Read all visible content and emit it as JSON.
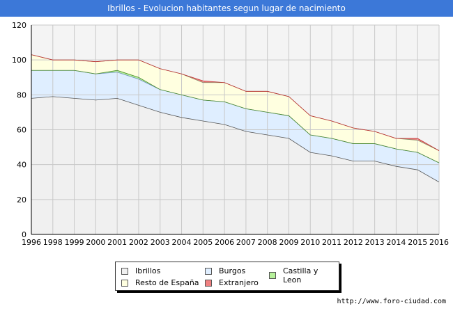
{
  "title": "Ibrillos - Evolucion habitantes segun lugar de nacimiento",
  "footer": "http://www.foro-ciudad.com",
  "colors": {
    "header_bg": "#3c78d8",
    "plot_bg": "#f4f4f4"
  },
  "chart_data": {
    "type": "area",
    "stacked": true,
    "x": [
      1996,
      1998,
      1999,
      2000,
      2001,
      2002,
      2003,
      2004,
      2005,
      2006,
      2007,
      2008,
      2009,
      2010,
      2011,
      2012,
      2013,
      2014,
      2015,
      2016
    ],
    "ylim": [
      0,
      120
    ],
    "yticks": [
      0,
      20,
      40,
      60,
      80,
      100,
      120
    ],
    "grid": true,
    "legend_position": "bottom",
    "series": [
      {
        "name": "Ibrillos",
        "color": "#f0f0f0",
        "values": [
          78,
          79,
          78,
          77,
          78,
          74,
          70,
          67,
          65,
          63,
          59,
          57,
          55,
          47,
          45,
          42,
          42,
          39,
          37,
          30
        ]
      },
      {
        "name": "Burgos",
        "color": "#dfeeff",
        "values": [
          16,
          15,
          16,
          15,
          15,
          15,
          13,
          13,
          12,
          13,
          13,
          13,
          13,
          10,
          10,
          10,
          10,
          10,
          10,
          11
        ]
      },
      {
        "name": "Castilla y Leon",
        "color": "#b6f09a",
        "values": [
          0,
          0,
          0,
          0,
          1,
          1,
          0,
          0,
          0,
          0,
          0,
          0,
          0,
          0,
          0,
          0,
          0,
          0,
          0,
          0
        ]
      },
      {
        "name": "Resto de España",
        "color": "#ffffe0",
        "values": [
          9,
          6,
          6,
          7,
          6,
          10,
          12,
          12,
          10,
          11,
          10,
          12,
          11,
          11,
          10,
          9,
          7,
          6,
          7,
          7
        ]
      },
      {
        "name": "Extranjero",
        "color": "#f08080",
        "values": [
          0,
          0,
          0,
          0,
          0,
          0,
          0,
          0,
          1,
          0,
          0,
          0,
          0,
          0,
          0,
          0,
          0,
          0,
          1,
          0
        ]
      }
    ]
  },
  "legend": [
    {
      "label": "Ibrillos",
      "color": "#f0f0f0"
    },
    {
      "label": "Burgos",
      "color": "#dfeeff"
    },
    {
      "label": "Castilla y Leon",
      "color": "#b6f09a"
    },
    {
      "label": "Resto de España",
      "color": "#ffffe0"
    },
    {
      "label": "Extranjero",
      "color": "#f08080"
    }
  ]
}
